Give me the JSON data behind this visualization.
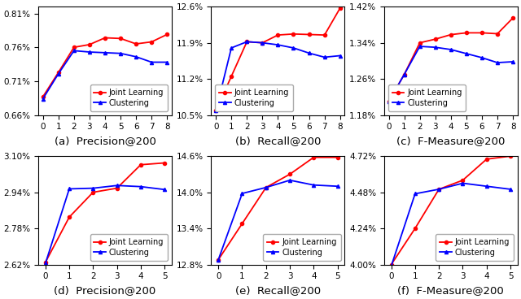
{
  "top_row": {
    "a": {
      "title": "(a)  Precision@200",
      "x": [
        0,
        1,
        2,
        3,
        4,
        5,
        6,
        7,
        8
      ],
      "joint": [
        0.687,
        0.723,
        0.76,
        0.764,
        0.774,
        0.773,
        0.765,
        0.768,
        0.779
      ],
      "cluster": [
        0.684,
        0.721,
        0.755,
        0.753,
        0.752,
        0.751,
        0.746,
        0.738,
        0.738
      ],
      "ylim": [
        0.66,
        0.82
      ],
      "yticks": [
        0.66,
        0.71,
        0.76,
        0.81
      ],
      "ytick_labels": [
        "0.66%",
        "0.71%",
        "0.76%",
        "0.81%"
      ],
      "legend_loc": "lower right"
    },
    "b": {
      "title": "(b)  Recall@200",
      "x": [
        0,
        1,
        2,
        3,
        4,
        5,
        6,
        7,
        8
      ],
      "joint": [
        10.58,
        11.25,
        11.92,
        11.9,
        12.05,
        12.07,
        12.06,
        12.05,
        12.57
      ],
      "cluster": [
        10.58,
        11.8,
        11.92,
        11.9,
        11.86,
        11.8,
        11.7,
        11.62,
        11.65
      ],
      "ylim": [
        10.5,
        12.6
      ],
      "yticks": [
        10.5,
        11.2,
        11.9,
        12.6
      ],
      "ytick_labels": [
        "10.5%",
        "11.2%",
        "11.9%",
        "12.6%"
      ],
      "legend_loc": "lower left"
    },
    "c": {
      "title": "(c)  F-Measure@200",
      "x": [
        0,
        1,
        2,
        3,
        4,
        5,
        6,
        7,
        8
      ],
      "joint": [
        1.21,
        1.27,
        1.34,
        1.348,
        1.358,
        1.362,
        1.362,
        1.36,
        1.395
      ],
      "cluster": [
        1.21,
        1.27,
        1.332,
        1.33,
        1.325,
        1.316,
        1.307,
        1.296,
        1.298
      ],
      "ylim": [
        1.18,
        1.42
      ],
      "yticks": [
        1.18,
        1.26,
        1.34,
        1.42
      ],
      "ytick_labels": [
        "1.18%",
        "1.26%",
        "1.34%",
        "1.42%"
      ],
      "legend_loc": "lower left"
    }
  },
  "bot_row": {
    "d": {
      "title": "(d)  Precision@200",
      "x": [
        0,
        1,
        2,
        3,
        4,
        5
      ],
      "joint": [
        2.63,
        2.83,
        2.94,
        2.958,
        3.062,
        3.07
      ],
      "cluster": [
        2.625,
        2.955,
        2.958,
        2.97,
        2.965,
        2.952
      ],
      "ylim": [
        2.62,
        3.1
      ],
      "yticks": [
        2.62,
        2.78,
        2.94,
        3.1
      ],
      "ytick_labels": [
        "2.62%",
        "2.78%",
        "2.94%",
        "3.10%"
      ],
      "legend_loc": "lower right"
    },
    "e": {
      "title": "(e)  Recall@200",
      "x": [
        0,
        1,
        2,
        3,
        4,
        5
      ],
      "joint": [
        12.88,
        13.48,
        14.08,
        14.3,
        14.58,
        14.58
      ],
      "cluster": [
        12.88,
        13.98,
        14.08,
        14.2,
        14.12,
        14.1
      ],
      "ylim": [
        12.8,
        14.6
      ],
      "yticks": [
        12.8,
        13.4,
        14.0,
        14.6
      ],
      "ytick_labels": [
        "12.8%",
        "13.4%",
        "14.0%",
        "14.6%"
      ],
      "legend_loc": "lower right"
    },
    "f": {
      "title": "(f)  F-Measure@200",
      "x": [
        0,
        1,
        2,
        3,
        4,
        5
      ],
      "joint": [
        4.0,
        4.24,
        4.5,
        4.56,
        4.7,
        4.72
      ],
      "cluster": [
        3.99,
        4.47,
        4.5,
        4.54,
        4.52,
        4.5
      ],
      "ylim": [
        4.0,
        4.72
      ],
      "yticks": [
        4.0,
        4.24,
        4.48,
        4.72
      ],
      "ytick_labels": [
        "4.00%",
        "4.24%",
        "4.48%",
        "4.72%"
      ],
      "legend_loc": "lower right"
    }
  },
  "joint_color": "#FF0000",
  "cluster_color": "#0000FF",
  "joint_label": "Joint Learning",
  "cluster_label": "Clustering",
  "legend_fontsize": 7.0,
  "tick_fontsize": 7.5,
  "title_fontsize": 9.5
}
